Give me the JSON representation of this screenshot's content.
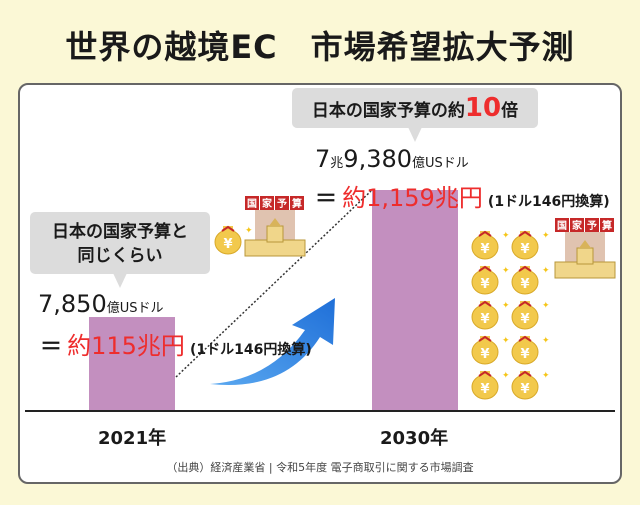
{
  "title": "世界の越境EC　市場希望拡大予測",
  "bubble_2030": {
    "prefix": "日本の国家予算の約",
    "num": "10",
    "suffix": "倍"
  },
  "bubble_2021": {
    "line1": "日本の国家予算と",
    "line2": "同じくらい"
  },
  "value_2030": {
    "a": "7",
    "b": "兆",
    "c": "9,380",
    "d": "億USドル",
    "eq": "＝",
    "yen": "約1,159兆円",
    "note": "(1ドル146円換算)"
  },
  "value_2021": {
    "a": "7,850",
    "d": "億USドル",
    "eq": "＝",
    "yen": "約115兆円",
    "note": "(1ドル146円換算)"
  },
  "budget_label": [
    "国",
    "家",
    "予",
    "算"
  ],
  "source": "（出典）経済産業省 | 令和5年度 電子商取引に関する市場調査",
  "colors": {
    "bar": "#c38fbf",
    "accent": "#ee2d2d",
    "arrow": "#2a7fe0",
    "background": "#fbf8d6"
  },
  "chart_data": {
    "type": "bar",
    "categories": [
      "2021年",
      "2030年"
    ],
    "values": [
      7850,
      79380
    ],
    "unit": "億USドル"
  }
}
